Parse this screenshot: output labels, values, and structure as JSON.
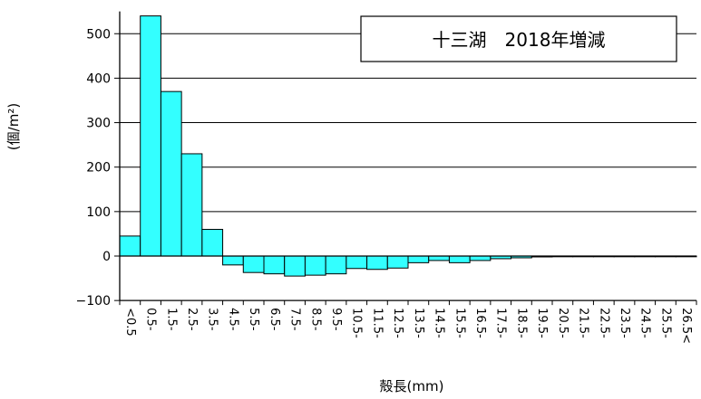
{
  "chart_data": {
    "type": "bar",
    "title": "十三湖　2018年増減",
    "xlabel": "殻長(mm)",
    "ylabel": "(個/m²)",
    "ylim": [
      -100,
      550
    ],
    "yticks": [
      -100,
      0,
      100,
      200,
      300,
      400,
      500
    ],
    "grid": true,
    "bar_color": "#33ffff",
    "categories": [
      "<0.5",
      "0.5-",
      "1.5-",
      "2.5-",
      "3.5-",
      "4.5-",
      "5.5-",
      "6.5-",
      "7.5-",
      "8.5-",
      "9.5-",
      "10.5-",
      "11.5-",
      "12.5-",
      "13.5-",
      "14.5-",
      "15.5-",
      "16.5-",
      "17.5-",
      "18.5-",
      "19.5-",
      "20.5-",
      "21.5-",
      "22.5-",
      "23.5-",
      "24.5-",
      "25.5-",
      "26.5<"
    ],
    "values": [
      45,
      540,
      370,
      230,
      60,
      -20,
      -37,
      -40,
      -45,
      -43,
      -40,
      -28,
      -30,
      -27,
      -15,
      -10,
      -15,
      -10,
      -6,
      -4,
      -2,
      -1,
      -1,
      -1,
      -1,
      -1,
      -1,
      -1
    ]
  }
}
